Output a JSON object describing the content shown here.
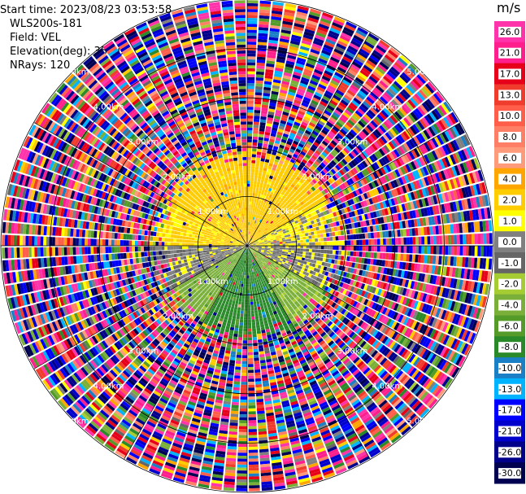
{
  "header": {
    "start_time": "Start time: 2023/08/23 03:53:58",
    "instrument": "WLS200s-181",
    "field": "Field: VEL",
    "elevation": "Elevation(deg): 35.30",
    "nrays": "NRays: 120"
  },
  "chart_data": {
    "type": "heatmap",
    "subtype": "polar PPI",
    "field": "VEL",
    "units": "m/s",
    "nrays": 120,
    "elevation_deg": 35.3,
    "range_rings_km": [
      1.0,
      2.0,
      3.0,
      4.0,
      5.0
    ],
    "range_ring_labels": [
      "1.00km",
      "2.00km",
      "3.00km",
      "4.00km",
      "5.00km"
    ],
    "max_range_km": 5.0,
    "colorbar": {
      "title": "m/s",
      "tick_labels": [
        "26.0",
        "21.0",
        "17.0",
        "13.0",
        "10.0",
        "8.0",
        "6.0",
        "4.0",
        "2.0",
        "1.0",
        "0.0",
        "-1.0",
        "-2.0",
        "-4.0",
        "-6.0",
        "-8.0",
        "-10.0",
        "-13.0",
        "-17.0",
        "-21.0",
        "-26.0",
        "-30.0"
      ],
      "bins": [
        {
          "min": 26,
          "max": 30,
          "color": "#ff33aa"
        },
        {
          "min": 21,
          "max": 26,
          "color": "#ff1f8c"
        },
        {
          "min": 17,
          "max": 21,
          "color": "#e6001a"
        },
        {
          "min": 13,
          "max": 17,
          "color": "#f03c2d"
        },
        {
          "min": 10,
          "max": 13,
          "color": "#ff5f4a"
        },
        {
          "min": 8,
          "max": 10,
          "color": "#ff7f66"
        },
        {
          "min": 6,
          "max": 8,
          "color": "#ff9a7a"
        },
        {
          "min": 4,
          "max": 6,
          "color": "#ffa500"
        },
        {
          "min": 2,
          "max": 4,
          "color": "#ffcc00"
        },
        {
          "min": 1,
          "max": 2,
          "color": "#ffff00"
        },
        {
          "min": 0,
          "max": 1,
          "color": "#808080"
        },
        {
          "min": -1,
          "max": 0,
          "color": "#666666"
        },
        {
          "min": -2,
          "max": -1,
          "color": "#a6cc33"
        },
        {
          "min": -4,
          "max": -2,
          "color": "#7ab03a"
        },
        {
          "min": -6,
          "max": -4,
          "color": "#559b2a"
        },
        {
          "min": -8,
          "max": -6,
          "color": "#2a8a2a"
        },
        {
          "min": -10,
          "max": -8,
          "color": "#1a7fc4"
        },
        {
          "min": -13,
          "max": -10,
          "color": "#00b3ff"
        },
        {
          "min": -17,
          "max": -13,
          "color": "#0000ff"
        },
        {
          "min": -21,
          "max": -17,
          "color": "#0000cc"
        },
        {
          "min": -26,
          "max": -21,
          "color": "#00008b"
        },
        {
          "min": -30,
          "max": -26,
          "color": "#000050"
        }
      ]
    },
    "velocity_pattern": {
      "near_range_valid_km": 1.6,
      "sectors": [
        {
          "azimuth_deg": [
            300,
            360
          ],
          "dominant_velocity": 3.0
        },
        {
          "azimuth_deg": [
            0,
            60
          ],
          "dominant_velocity": 3.0
        },
        {
          "azimuth_deg": [
            60,
            90
          ],
          "dominant_velocity": 1.5
        },
        {
          "azimuth_deg": [
            90,
            120
          ],
          "dominant_velocity": 0.4
        },
        {
          "azimuth_deg": [
            120,
            150
          ],
          "dominant_velocity": -2.5
        },
        {
          "azimuth_deg": [
            150,
            210
          ],
          "dominant_velocity": -7.0
        },
        {
          "azimuth_deg": [
            210,
            240
          ],
          "dominant_velocity": -3.0
        },
        {
          "azimuth_deg": [
            240,
            270
          ],
          "dominant_velocity": 0.4
        },
        {
          "azimuth_deg": [
            270,
            300
          ],
          "dominant_velocity": 2.5
        }
      ],
      "far_range": "noise across full colour scale"
    },
    "grid": true
  }
}
